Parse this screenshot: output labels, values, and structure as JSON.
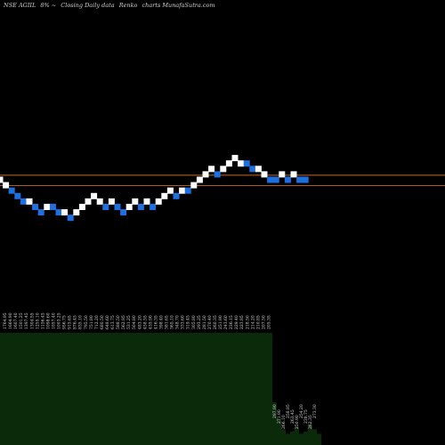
{
  "header": {
    "symbol": "NSE AGIIL",
    "change": "8%",
    "description": "Closing Daily data",
    "chart_kind": "Renko",
    "site": "charts MunafaSutra.com"
  },
  "colors": {
    "background": "#000000",
    "up_brick": "#ffffff",
    "down_brick": "#1e6fe0",
    "level_line": "#c8682a",
    "volume_fill": "#0a2a0a"
  },
  "chart_data": {
    "type": "renko",
    "title": "NSE AGIIL 8%~ Closing Daily data Renko charts MunafaSutra.com",
    "brick_size_percent": 8,
    "bricks": [
      {
        "step": 0,
        "level": 0,
        "dir": "up"
      },
      {
        "step": 1,
        "level": -1,
        "dir": "up"
      },
      {
        "step": 2,
        "level": -2,
        "dir": "down"
      },
      {
        "step": 3,
        "level": -3,
        "dir": "down"
      },
      {
        "step": 4,
        "level": -4,
        "dir": "down"
      },
      {
        "step": 5,
        "level": -4,
        "dir": "up"
      },
      {
        "step": 6,
        "level": -5,
        "dir": "down"
      },
      {
        "step": 7,
        "level": -6,
        "dir": "down"
      },
      {
        "step": 8,
        "level": -5,
        "dir": "up"
      },
      {
        "step": 9,
        "level": -5,
        "dir": "down"
      },
      {
        "step": 10,
        "level": -6,
        "dir": "down"
      },
      {
        "step": 11,
        "level": -6,
        "dir": "up"
      },
      {
        "step": 12,
        "level": -7,
        "dir": "down"
      },
      {
        "step": 13,
        "level": -6,
        "dir": "up"
      },
      {
        "step": 14,
        "level": -5,
        "dir": "up"
      },
      {
        "step": 15,
        "level": -4,
        "dir": "up"
      },
      {
        "step": 16,
        "level": -3,
        "dir": "up"
      },
      {
        "step": 17,
        "level": -4,
        "dir": "up"
      },
      {
        "step": 18,
        "level": -5,
        "dir": "down"
      },
      {
        "step": 19,
        "level": -4,
        "dir": "up"
      },
      {
        "step": 20,
        "level": -5,
        "dir": "down"
      },
      {
        "step": 21,
        "level": -6,
        "dir": "down"
      },
      {
        "step": 22,
        "level": -5,
        "dir": "up"
      },
      {
        "step": 23,
        "level": -4,
        "dir": "up"
      },
      {
        "step": 24,
        "level": -5,
        "dir": "down"
      },
      {
        "step": 25,
        "level": -4,
        "dir": "up"
      },
      {
        "step": 26,
        "level": -5,
        "dir": "down"
      },
      {
        "step": 27,
        "level": -4,
        "dir": "up"
      },
      {
        "step": 28,
        "level": -3,
        "dir": "up"
      },
      {
        "step": 29,
        "level": -2,
        "dir": "up"
      },
      {
        "step": 30,
        "level": -3,
        "dir": "down"
      },
      {
        "step": 31,
        "level": -2,
        "dir": "up"
      },
      {
        "step": 32,
        "level": -2,
        "dir": "down"
      },
      {
        "step": 33,
        "level": -1,
        "dir": "up"
      },
      {
        "step": 34,
        "level": 0,
        "dir": "up"
      },
      {
        "step": 35,
        "level": 1,
        "dir": "up"
      },
      {
        "step": 36,
        "level": 2,
        "dir": "up"
      },
      {
        "step": 37,
        "level": 1,
        "dir": "down"
      },
      {
        "step": 38,
        "level": 2,
        "dir": "up"
      },
      {
        "step": 39,
        "level": 3,
        "dir": "up"
      },
      {
        "step": 40,
        "level": 4,
        "dir": "up"
      },
      {
        "step": 41,
        "level": 3,
        "dir": "up"
      },
      {
        "step": 42,
        "level": 3,
        "dir": "down"
      },
      {
        "step": 43,
        "level": 2,
        "dir": "down"
      },
      {
        "step": 44,
        "level": 2,
        "dir": "up"
      },
      {
        "step": 45,
        "level": 1,
        "dir": "up"
      },
      {
        "step": 46,
        "level": 0,
        "dir": "down"
      },
      {
        "step": 47,
        "level": 0,
        "dir": "down"
      },
      {
        "step": 48,
        "level": 1,
        "dir": "up"
      },
      {
        "step": 49,
        "level": 0,
        "dir": "down"
      },
      {
        "step": 50,
        "level": 1,
        "dir": "up"
      },
      {
        "step": 51,
        "level": 0,
        "dir": "down"
      },
      {
        "step": 52,
        "level": 0,
        "dir": "down"
      }
    ],
    "price_labels": [
      "1764.95",
      "1664.90",
      "1607.40",
      "1501.25",
      "1397.45",
      "1304.55",
      "1255.10",
      "1156.45",
      "1098.60",
      "1057.40",
      "1003.25",
      "956.75",
      "915.65",
      "876.45",
      "835.10",
      "795.50",
      "751.80",
      "712.20",
      "680.50",
      "649.60",
      "613.75",
      "588.50",
      "562.95",
      "531.25",
      "504.80",
      "483.20",
      "458.55",
      "435.90",
      "416.35",
      "398.40",
      "381.65",
      "365.10",
      "348.70",
      "333.60",
      "319.45",
      "305.80",
      "293.25",
      "281.50",
      "270.40",
      "260.35",
      "251.90",
      "243.60",
      "236.15",
      "229.40",
      "223.85",
      "218.50",
      "214.20",
      "210.85",
      "207.50",
      "205.35"
    ],
    "levels": [
      {
        "name": "upper-level",
        "value": 0.84
      },
      {
        "name": "lower-level",
        "value": -1.08
      }
    ],
    "volume": {
      "main_block": true,
      "tail_values": [
        0.38,
        0.24,
        0.14,
        0.1,
        0.12,
        0.16,
        0.1,
        0.12,
        0.18,
        0.14,
        0.1
      ],
      "tail_labels": [
        "297.90",
        "271.90",
        "266.10",
        "258.85",
        "263.45",
        "250.90",
        "254.20",
        "238.75",
        "262.35",
        "273.30"
      ]
    }
  }
}
